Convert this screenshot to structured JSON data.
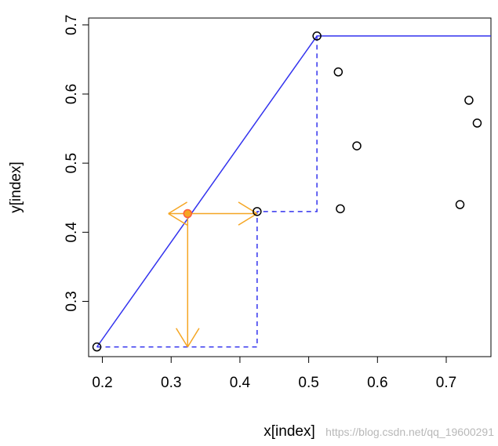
{
  "chart_data": {
    "type": "scatter",
    "xlabel": "x[index]",
    "ylabel": "y[index]",
    "xlim": [
      0.18,
      0.765
    ],
    "ylim": [
      0.22,
      0.71
    ],
    "x_ticks": [
      "0.2",
      "0.3",
      "0.4",
      "0.5",
      "0.6",
      "0.7"
    ],
    "y_ticks": [
      "0.3",
      "0.4",
      "0.5",
      "0.6",
      "0.7"
    ],
    "grid": false,
    "points": [
      {
        "x": 0.192,
        "y": 0.234
      },
      {
        "x": 0.425,
        "y": 0.43
      },
      {
        "x": 0.512,
        "y": 0.684
      },
      {
        "x": 0.543,
        "y": 0.632
      },
      {
        "x": 0.546,
        "y": 0.434
      },
      {
        "x": 0.57,
        "y": 0.525
      },
      {
        "x": 0.72,
        "y": 0.44
      },
      {
        "x": 0.733,
        "y": 0.591
      },
      {
        "x": 0.745,
        "y": 0.558
      }
    ],
    "highlight_point": {
      "x": 0.324,
      "y": 0.427,
      "color": "#ff5a3c"
    },
    "solid_line": {
      "color": "#3333ee",
      "points": [
        {
          "x": 0.192,
          "y": 0.234
        },
        {
          "x": 0.512,
          "y": 0.684
        },
        {
          "x": 0.765,
          "y": 0.684
        }
      ]
    },
    "dashed_step": {
      "color": "#3333ee",
      "points": [
        {
          "x": 0.192,
          "y": 0.234
        },
        {
          "x": 0.425,
          "y": 0.234
        },
        {
          "x": 0.425,
          "y": 0.43
        },
        {
          "x": 0.512,
          "y": 0.43
        },
        {
          "x": 0.512,
          "y": 0.684
        }
      ]
    },
    "arrows": {
      "color": "#f5a623",
      "items": [
        {
          "from": {
            "x": 0.324,
            "y": 0.427
          },
          "to": {
            "x": 0.425,
            "y": 0.427
          }
        },
        {
          "from": {
            "x": 0.324,
            "y": 0.427
          },
          "to": {
            "x": 0.324,
            "y": 0.234
          }
        },
        {
          "from": {
            "x": 0.324,
            "y": 0.427
          },
          "to": {
            "x": 0.296,
            "y": 0.427
          }
        }
      ]
    }
  },
  "watermark": "https://blog.csdn.net/qq_19600291"
}
